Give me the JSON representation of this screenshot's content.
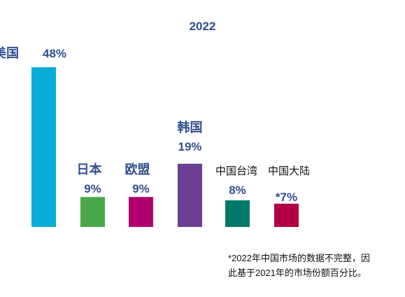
{
  "chart_data": {
    "type": "bar",
    "title": "2022",
    "categories": [
      "美国",
      "日本",
      "欧盟",
      "韩国",
      "中国台湾",
      "中国大陆"
    ],
    "values": [
      48,
      9,
      9,
      19,
      8,
      7
    ],
    "value_labels": [
      "48%",
      "9%",
      "9%",
      "19%",
      "8%",
      "*7%"
    ],
    "colors": [
      "#0aacd8",
      "#4aa846",
      "#b0006d",
      "#6c3f94",
      "#00796b",
      "#b20045"
    ],
    "label_color": "#2f4f8f",
    "ylim": [
      0,
      48
    ],
    "grid": false,
    "legend": "none"
  },
  "footnote": {
    "line1": "*2022年中国市场的数据不完整，因",
    "line2": "此基于2021年的市场份额百分比。"
  }
}
